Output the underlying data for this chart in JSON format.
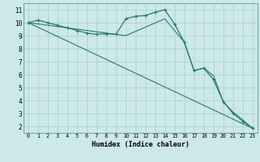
{
  "xlabel": "Humidex (Indice chaleur)",
  "bg_color": "#cce8e8",
  "grid_color": "#aacccc",
  "line_color": "#2a7a70",
  "xlim": [
    -0.5,
    23.5
  ],
  "ylim": [
    1.5,
    11.5
  ],
  "xticks": [
    0,
    1,
    2,
    3,
    4,
    5,
    6,
    7,
    8,
    9,
    10,
    11,
    12,
    13,
    14,
    15,
    16,
    17,
    18,
    19,
    20,
    21,
    22,
    23
  ],
  "yticks": [
    2,
    3,
    4,
    5,
    6,
    7,
    8,
    9,
    10,
    11
  ],
  "series": [
    {
      "x": [
        0,
        1,
        2,
        3,
        4,
        5,
        6,
        7,
        8,
        9,
        10,
        11,
        12,
        13,
        14,
        15,
        16,
        17,
        18,
        19,
        20,
        21,
        22,
        23
      ],
      "y": [
        10.0,
        10.2,
        10.0,
        9.8,
        9.6,
        9.4,
        9.2,
        9.1,
        9.15,
        9.1,
        10.3,
        10.5,
        10.55,
        10.8,
        11.0,
        9.9,
        8.5,
        6.3,
        6.5,
        5.6,
        3.9,
        3.0,
        2.4,
        1.85
      ],
      "has_marker": true
    },
    {
      "x": [
        0,
        23
      ],
      "y": [
        10.0,
        1.85
      ],
      "has_marker": false
    },
    {
      "x": [
        0,
        5,
        10,
        14,
        16,
        17,
        18,
        19,
        20,
        21,
        22,
        23
      ],
      "y": [
        10.0,
        9.5,
        9.0,
        10.3,
        8.5,
        6.3,
        6.5,
        5.9,
        3.9,
        3.1,
        2.5,
        1.85
      ],
      "has_marker": false
    }
  ]
}
